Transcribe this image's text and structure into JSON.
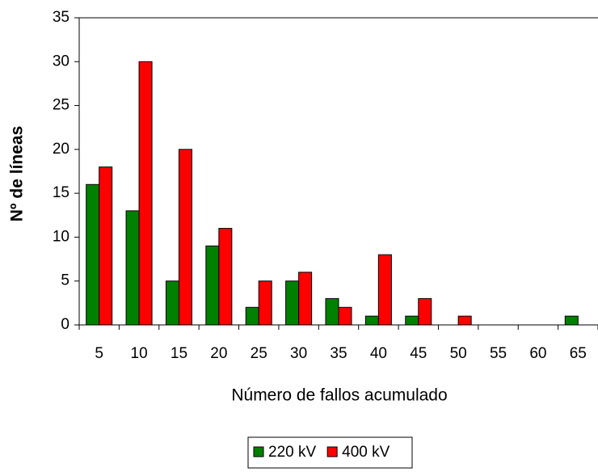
{
  "chart_data": {
    "type": "bar",
    "x_label": "Número de fallos acumulado",
    "y_label": "Nº de líneas",
    "categories": [
      "5",
      "10",
      "15",
      "20",
      "25",
      "30",
      "35",
      "40",
      "45",
      "50",
      "55",
      "60",
      "65"
    ],
    "series": [
      {
        "name": "220 kV",
        "color": "#008000",
        "values": [
          16,
          13,
          5,
          9,
          2,
          5,
          3,
          1,
          1,
          0,
          0,
          0,
          1
        ]
      },
      {
        "name": "400 kV",
        "color": "#ff0000",
        "values": [
          18,
          30,
          20,
          11,
          5,
          6,
          2,
          8,
          3,
          1,
          0,
          0,
          0
        ]
      }
    ],
    "ylim": [
      0,
      35
    ],
    "yticks": [
      0,
      5,
      10,
      15,
      20,
      25,
      30,
      35
    ],
    "grid": false,
    "legend": "bottom"
  }
}
